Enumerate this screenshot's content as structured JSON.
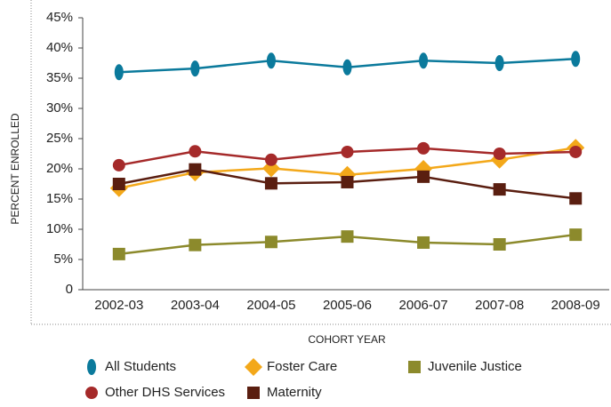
{
  "chart_data": {
    "type": "line",
    "y_label": "PERCENT ENROLLED",
    "x_label": "COHORT YEAR",
    "categories": [
      "2002-03",
      "2003-04",
      "2004-05",
      "2005-06",
      "2006-07",
      "2007-08",
      "2008-09"
    ],
    "ylim": [
      0,
      45
    ],
    "yticks": [
      0,
      {
        "value": 5,
        "label": "5%"
      },
      {
        "value": 10,
        "label": "10%"
      },
      {
        "value": 15,
        "label": "15%"
      },
      {
        "value": 20,
        "label": "20%"
      },
      {
        "value": 25,
        "label": "25%"
      },
      {
        "value": 30,
        "label": "30%"
      },
      {
        "value": 35,
        "label": "35%"
      },
      {
        "value": 40,
        "label": "40%"
      },
      {
        "value": 45,
        "label": "45%"
      }
    ],
    "grid": false,
    "series": [
      {
        "name": "All Students",
        "color": "#0b7a9c",
        "marker": "ellipse",
        "values": [
          36.0,
          36.6,
          37.9,
          36.8,
          37.9,
          37.5,
          38.2
        ]
      },
      {
        "name": "Foster Care",
        "color": "#f3a81a",
        "marker": "diamond",
        "values": [
          16.8,
          19.4,
          20.1,
          19.0,
          20.0,
          21.5,
          23.5
        ]
      },
      {
        "name": "Juvenile Justice",
        "color": "#8c8a2c",
        "marker": "square",
        "values": [
          5.9,
          7.4,
          7.9,
          8.8,
          7.8,
          7.5,
          9.1
        ]
      },
      {
        "name": "Other DHS Services",
        "color": "#a52a2a",
        "marker": "circle",
        "values": [
          20.6,
          22.9,
          21.5,
          22.8,
          23.4,
          22.5,
          22.8
        ]
      },
      {
        "name": "Maternity",
        "color": "#5a1e10",
        "marker": "square",
        "values": [
          17.5,
          19.9,
          17.6,
          17.8,
          18.7,
          16.6,
          15.1
        ]
      }
    ]
  }
}
